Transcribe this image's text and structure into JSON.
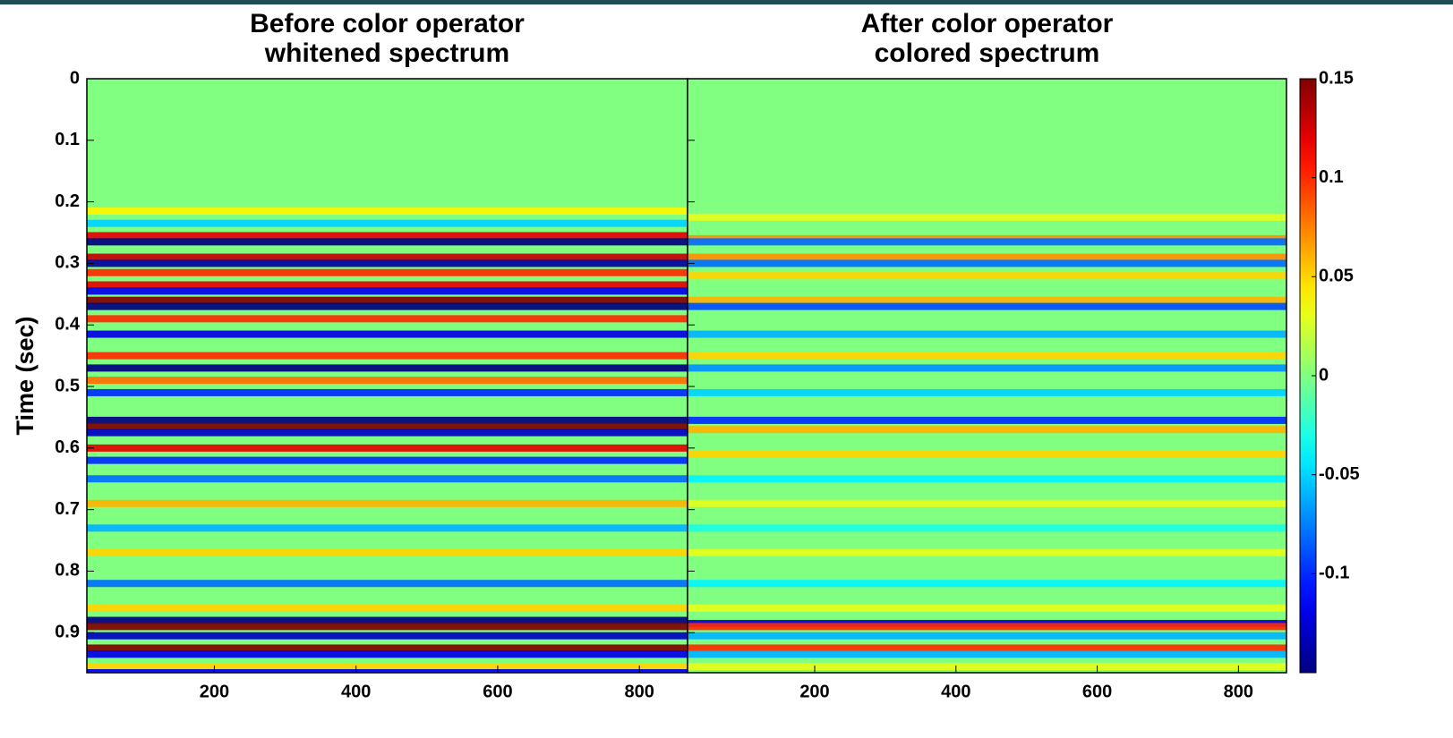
{
  "chart_data": [
    {
      "type": "heatmap",
      "title": [
        "Before color operator",
        "whitened spectrum"
      ],
      "ylabel": "Time (sec)",
      "xlim": [
        20,
        868
      ],
      "xticks": [
        200,
        400,
        600,
        800
      ],
      "ylim": [
        0,
        0.965
      ],
      "yticks": [
        0,
        0.1,
        0.2,
        0.3,
        0.4,
        0.5,
        0.6,
        0.7,
        0.8,
        0.9
      ],
      "reflectors": [
        {
          "time": 0.215,
          "value": 0.04
        },
        {
          "time": 0.235,
          "value": -0.05
        },
        {
          "time": 0.255,
          "value": 0.12
        },
        {
          "time": 0.265,
          "value": -0.15
        },
        {
          "time": 0.29,
          "value": 0.13
        },
        {
          "time": 0.3,
          "value": -0.14
        },
        {
          "time": 0.315,
          "value": 0.1
        },
        {
          "time": 0.335,
          "value": 0.12
        },
        {
          "time": 0.345,
          "value": -0.12
        },
        {
          "time": 0.36,
          "value": 0.15
        },
        {
          "time": 0.37,
          "value": -0.15
        },
        {
          "time": 0.39,
          "value": 0.1
        },
        {
          "time": 0.415,
          "value": -0.12
        },
        {
          "time": 0.45,
          "value": 0.1
        },
        {
          "time": 0.47,
          "value": -0.15
        },
        {
          "time": 0.49,
          "value": 0.08
        },
        {
          "time": 0.51,
          "value": -0.1
        },
        {
          "time": 0.555,
          "value": -0.15
        },
        {
          "time": 0.565,
          "value": 0.15
        },
        {
          "time": 0.575,
          "value": -0.13
        },
        {
          "time": 0.6,
          "value": 0.12
        },
        {
          "time": 0.62,
          "value": -0.1
        },
        {
          "time": 0.65,
          "value": -0.08
        },
        {
          "time": 0.69,
          "value": 0.06
        },
        {
          "time": 0.73,
          "value": -0.06
        },
        {
          "time": 0.77,
          "value": 0.05
        },
        {
          "time": 0.82,
          "value": -0.08
        },
        {
          "time": 0.86,
          "value": 0.05
        },
        {
          "time": 0.88,
          "value": -0.15
        },
        {
          "time": 0.89,
          "value": 0.15
        },
        {
          "time": 0.905,
          "value": -0.13
        },
        {
          "time": 0.925,
          "value": 0.15
        },
        {
          "time": 0.935,
          "value": -0.12
        },
        {
          "time": 0.955,
          "value": 0.05
        },
        {
          "time": 0.965,
          "value": -0.12
        }
      ]
    },
    {
      "type": "heatmap",
      "title": [
        "After color operator",
        "colored spectrum"
      ],
      "xlim": [
        20,
        868
      ],
      "xticks": [
        200,
        400,
        600,
        800
      ],
      "ylim": [
        0,
        0.965
      ],
      "reflectors": [
        {
          "time": 0.225,
          "value": 0.03
        },
        {
          "time": 0.26,
          "value": 0.07
        },
        {
          "time": 0.265,
          "value": -0.08
        },
        {
          "time": 0.29,
          "value": 0.07
        },
        {
          "time": 0.3,
          "value": -0.08
        },
        {
          "time": 0.32,
          "value": 0.05
        },
        {
          "time": 0.36,
          "value": 0.06
        },
        {
          "time": 0.37,
          "value": -0.09
        },
        {
          "time": 0.415,
          "value": -0.06
        },
        {
          "time": 0.45,
          "value": 0.05
        },
        {
          "time": 0.47,
          "value": -0.07
        },
        {
          "time": 0.51,
          "value": -0.05
        },
        {
          "time": 0.555,
          "value": -0.1
        },
        {
          "time": 0.57,
          "value": 0.06
        },
        {
          "time": 0.61,
          "value": 0.05
        },
        {
          "time": 0.65,
          "value": -0.04
        },
        {
          "time": 0.69,
          "value": 0.03
        },
        {
          "time": 0.73,
          "value": -0.03
        },
        {
          "time": 0.77,
          "value": 0.03
        },
        {
          "time": 0.82,
          "value": -0.04
        },
        {
          "time": 0.86,
          "value": 0.03
        },
        {
          "time": 0.885,
          "value": -0.12
        },
        {
          "time": 0.89,
          "value": 0.1
        },
        {
          "time": 0.905,
          "value": -0.06
        },
        {
          "time": 0.925,
          "value": 0.1
        },
        {
          "time": 0.935,
          "value": -0.06
        },
        {
          "time": 0.955,
          "value": 0.03
        }
      ],
      "colorbar": {
        "lim": [
          -0.15,
          0.15
        ],
        "ticks": [
          0.15,
          0.1,
          0.05,
          0,
          -0.05,
          -0.1
        ]
      }
    }
  ]
}
